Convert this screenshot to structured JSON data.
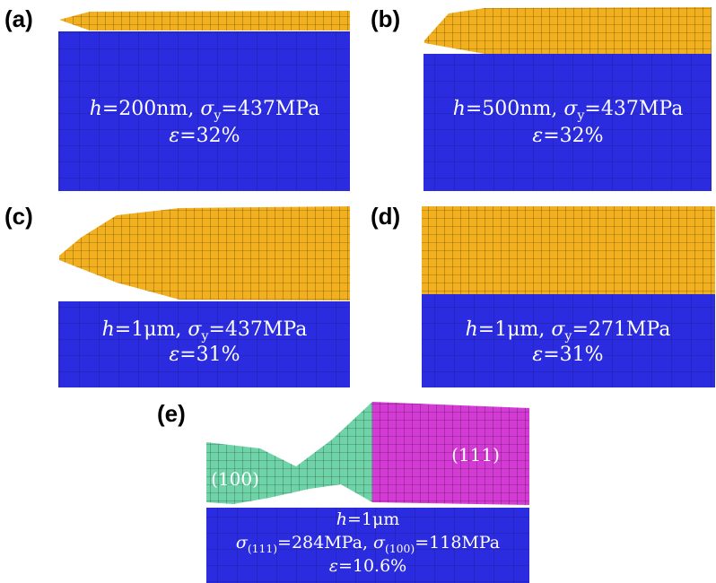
{
  "panels": [
    {
      "label": "(a)",
      "lines": [
        [
          {
            "text": "h",
            "italic": true
          },
          {
            "text": "=200nm, "
          },
          {
            "text": "σ",
            "italic": true
          },
          {
            "text": "y",
            "sub": true
          },
          {
            "text": "=437MPa"
          }
        ],
        [
          {
            "text": "ε",
            "italic": true
          },
          {
            "text": "=32%"
          }
        ]
      ]
    },
    {
      "label": "(b)",
      "lines": [
        [
          {
            "text": "h",
            "italic": true
          },
          {
            "text": "=500nm, "
          },
          {
            "text": "σ",
            "italic": true
          },
          {
            "text": "y",
            "sub": true
          },
          {
            "text": "=437MPa"
          }
        ],
        [
          {
            "text": "ε",
            "italic": true
          },
          {
            "text": "=32%"
          }
        ]
      ]
    },
    {
      "label": "(c)",
      "lines": [
        [
          {
            "text": "h",
            "italic": true
          },
          {
            "text": "=1μm, "
          },
          {
            "text": "σ",
            "italic": true
          },
          {
            "text": "y",
            "sub": true
          },
          {
            "text": "=437MPa"
          }
        ],
        [
          {
            "text": "ε",
            "italic": true
          },
          {
            "text": "=31%"
          }
        ]
      ]
    },
    {
      "label": "(d)",
      "lines": [
        [
          {
            "text": "h",
            "italic": true
          },
          {
            "text": "=1μm, "
          },
          {
            "text": "σ",
            "italic": true
          },
          {
            "text": "y",
            "sub": true
          },
          {
            "text": "=271MPa"
          }
        ],
        [
          {
            "text": "ε",
            "italic": true
          },
          {
            "text": "=31%"
          }
        ]
      ]
    },
    {
      "label": "(e)",
      "grain_labels": [
        "(100)",
        "(111)"
      ],
      "lines": [
        [
          {
            "text": "h",
            "italic": true
          },
          {
            "text": "=1μm"
          }
        ],
        [
          {
            "text": "σ",
            "italic": true
          },
          {
            "text": "(111)",
            "sub": true
          },
          {
            "text": "=284MPa, "
          },
          {
            "text": "σ",
            "italic": true
          },
          {
            "text": "(100)",
            "sub": true
          },
          {
            "text": "=118MPa"
          }
        ],
        [
          {
            "text": "ε",
            "italic": true
          },
          {
            "text": "=10.6%"
          }
        ]
      ]
    }
  ]
}
